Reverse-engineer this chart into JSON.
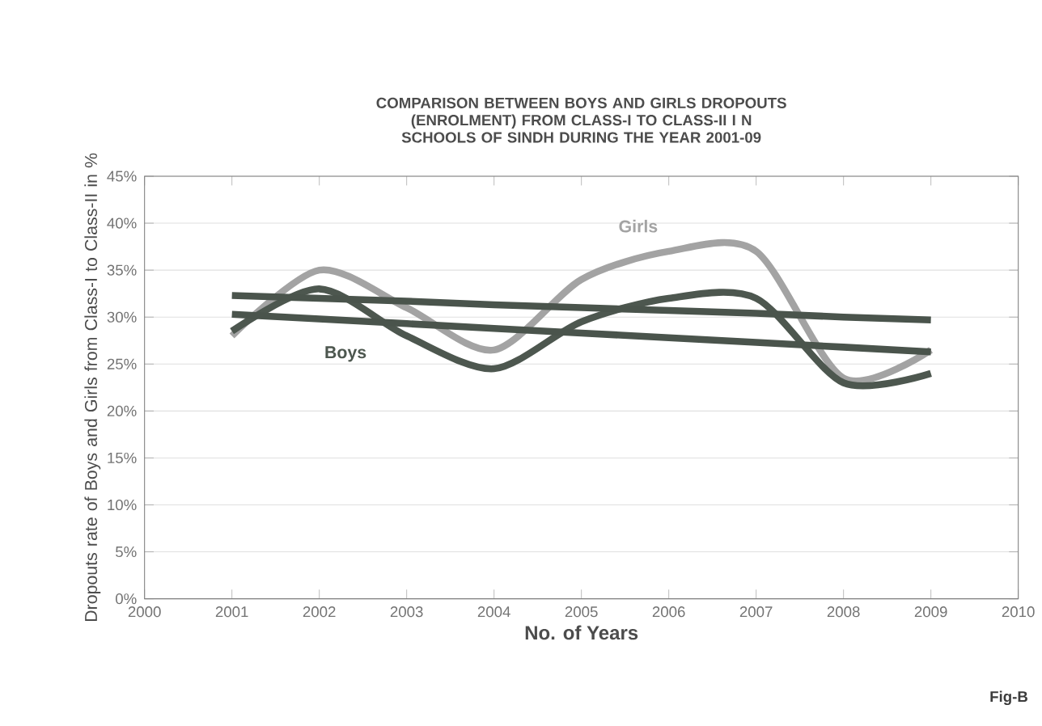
{
  "chart_data": {
    "type": "line",
    "title": "COMPARISON BETWEEN BOYS AND GIRLS DROPOUTS (ENROLMENT) FROM CLASS-I TO CLASS-II I N SCHOOLS OF SINDH DURING THE YEAR 2001-09",
    "xlabel": "No. of Years",
    "ylabel": "Dropouts rate of Boys and Girls from Class-I to Class-II in %",
    "x": [
      2001,
      2002,
      2003,
      2004,
      2005,
      2006,
      2007,
      2008,
      2009
    ],
    "series": [
      {
        "name": "Girls",
        "color": "#a3a3a3",
        "values": [
          28,
          35,
          31,
          26.5,
          34,
          37,
          37,
          23.5,
          26.5
        ]
      },
      {
        "name": "Boys",
        "color": "#4d574f",
        "values": [
          28.5,
          33,
          28,
          24.5,
          29.5,
          32,
          32,
          23,
          24
        ]
      },
      {
        "color": "#4a544c",
        "values": [
          32.3,
          32.0,
          31.7,
          31.3,
          31.0,
          30.7,
          30.4,
          30.0,
          29.7
        ]
      },
      {
        "color": "#4a544c",
        "values": [
          30.3,
          29.8,
          29.3,
          28.8,
          28.3,
          27.8,
          27.3,
          26.8,
          26.3
        ]
      }
    ],
    "xlim": [
      2000,
      2010
    ],
    "xticks": [
      2000,
      2001,
      2002,
      2003,
      2004,
      2005,
      2006,
      2007,
      2008,
      2009,
      2010
    ],
    "ylim": [
      0,
      45
    ],
    "yticks": [
      {
        "value": 0,
        "label": "0%"
      },
      {
        "value": 5,
        "label": "5%"
      },
      {
        "value": 10,
        "label": "10%"
      },
      {
        "value": 15,
        "label": "15%"
      },
      {
        "value": 20,
        "label": "20%"
      },
      {
        "value": 25,
        "label": "25%"
      },
      {
        "value": 30,
        "label": "30%"
      },
      {
        "value": 35,
        "label": "35%"
      },
      {
        "value": 40,
        "label": "40%"
      },
      {
        "value": 45,
        "label": "45%"
      }
    ],
    "grid": "y",
    "legend": false,
    "marker": "none",
    "line_style": "solid",
    "annotations": [
      "Fig-B"
    ]
  }
}
